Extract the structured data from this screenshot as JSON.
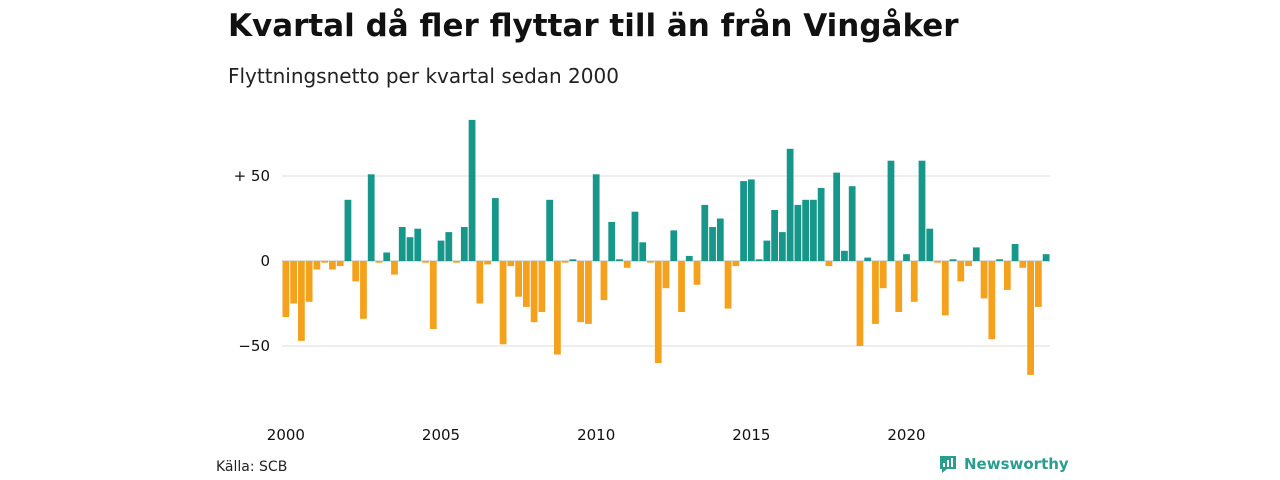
{
  "title": "Kvartal då fler flyttar till än från Vingåker",
  "subtitle": "Flyttningsnetto per kvartal sedan 2000",
  "source": "Källa: SCB",
  "brand": "Newsworthy",
  "colors": {
    "positive": "#17968a",
    "negative": "#f4a11d",
    "grid": "#dddddd",
    "brand": "#2a9d8f"
  },
  "chart_data": {
    "type": "bar",
    "title": "Kvartal då fler flyttar till än från Vingåker",
    "subtitle": "Flyttningsnetto per kvartal sedan 2000",
    "x_start": "2000Q1",
    "xticks": [
      "2000",
      "2005",
      "2010",
      "2015",
      "2020"
    ],
    "yticks": [
      {
        "value": 50,
        "label": "+ 50"
      },
      {
        "value": 0,
        "label": "0"
      },
      {
        "value": -50,
        "label": "−50"
      }
    ],
    "ylim": [
      -80,
      85
    ],
    "grid": true,
    "values": [
      -33,
      -25,
      -47,
      -24,
      -5,
      -1,
      -5,
      -3,
      36,
      -12,
      -34,
      51,
      -1,
      5,
      -8,
      20,
      14,
      19,
      -1,
      -40,
      12,
      17,
      -1,
      20,
      83,
      -25,
      -2,
      37,
      -49,
      -3,
      -21,
      -27,
      -36,
      -30,
      36,
      -55,
      -1,
      1,
      -36,
      -37,
      51,
      -23,
      23,
      1,
      -4,
      29,
      11,
      -1,
      -60,
      -16,
      18,
      -30,
      3,
      -14,
      33,
      20,
      25,
      -28,
      -3,
      47,
      48,
      1,
      12,
      30,
      17,
      66,
      33,
      36,
      36,
      43,
      -3,
      52,
      6,
      44,
      -50,
      2,
      -37,
      -16,
      59,
      -30,
      4,
      -24,
      59,
      19,
      -1,
      -32,
      1,
      -12,
      -3,
      8,
      -22,
      -46,
      1,
      -17,
      10,
      -4,
      -67,
      -27,
      4
    ]
  }
}
